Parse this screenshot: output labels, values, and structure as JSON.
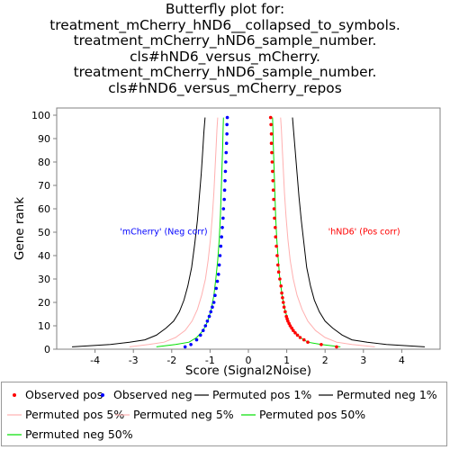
{
  "title_lines": [
    "Butterfly plot for:",
    "treatment_mCherry_hND6__collapsed_to_symbols.",
    "treatment_mCherry_hND6_sample_number.",
    "cls#hND6_versus_mCherry.",
    "treatment_mCherry_hND6_sample_number.",
    "cls#hND6_versus_mCherry_repos"
  ],
  "chart_data": {
    "type": "line",
    "xlabel": "Score (Signal2Noise)",
    "ylabel": "Gene rank",
    "xlim": [
      -5,
      5
    ],
    "ylim": [
      0,
      100
    ],
    "xticks": [
      -4,
      -3,
      -2,
      -1,
      0,
      1,
      2,
      3,
      4
    ],
    "yticks": [
      0,
      10,
      20,
      30,
      40,
      50,
      60,
      70,
      80,
      90,
      100
    ],
    "grid": false,
    "annotations": [
      {
        "text": "'mCherry' (Neg corr)",
        "color": "#0000ff",
        "x": -3.35,
        "y": 49
      },
      {
        "text": "'hND6' (Pos corr)",
        "color": "#ff0000",
        "x": 3.3,
        "y": 49
      }
    ],
    "series": [
      {
        "name": "Observed pos",
        "kind": "points",
        "color": "#ff0000",
        "points": [
          [
            2.3,
            1
          ],
          [
            1.9,
            2
          ],
          [
            1.55,
            3
          ],
          [
            1.45,
            4
          ],
          [
            1.35,
            5
          ],
          [
            1.28,
            6
          ],
          [
            1.22,
            7
          ],
          [
            1.17,
            8
          ],
          [
            1.13,
            9
          ],
          [
            1.09,
            10
          ],
          [
            1.06,
            11
          ],
          [
            1.03,
            12
          ],
          [
            1.01,
            13
          ],
          [
            0.99,
            14
          ],
          [
            0.96,
            16
          ],
          [
            0.93,
            18
          ],
          [
            0.91,
            20
          ],
          [
            0.89,
            22
          ],
          [
            0.87,
            24
          ],
          [
            0.85,
            27
          ],
          [
            0.82,
            30
          ],
          [
            0.79,
            33
          ],
          [
            0.77,
            36
          ],
          [
            0.75,
            40
          ],
          [
            0.73,
            44
          ],
          [
            0.71,
            48
          ],
          [
            0.7,
            52
          ],
          [
            0.68,
            56
          ],
          [
            0.67,
            60
          ],
          [
            0.66,
            64
          ],
          [
            0.65,
            68
          ],
          [
            0.64,
            72
          ],
          [
            0.63,
            76
          ],
          [
            0.62,
            80
          ],
          [
            0.61,
            84
          ],
          [
            0.6,
            88
          ],
          [
            0.6,
            92
          ],
          [
            0.59,
            96
          ],
          [
            0.58,
            99
          ]
        ]
      },
      {
        "name": "Observed neg",
        "kind": "points",
        "color": "#0000ff",
        "points": [
          [
            -1.65,
            1
          ],
          [
            -1.5,
            2
          ],
          [
            -1.35,
            4
          ],
          [
            -1.25,
            6
          ],
          [
            -1.18,
            8
          ],
          [
            -1.12,
            10
          ],
          [
            -1.07,
            12
          ],
          [
            -1.02,
            14
          ],
          [
            -0.98,
            16
          ],
          [
            -0.94,
            18
          ],
          [
            -0.9,
            20
          ],
          [
            -0.87,
            23
          ],
          [
            -0.84,
            26
          ],
          [
            -0.81,
            29
          ],
          [
            -0.78,
            32
          ],
          [
            -0.76,
            36
          ],
          [
            -0.74,
            40
          ],
          [
            -0.72,
            44
          ],
          [
            -0.7,
            48
          ],
          [
            -0.68,
            52
          ],
          [
            -0.66,
            56
          ],
          [
            -0.65,
            60
          ],
          [
            -0.63,
            64
          ],
          [
            -0.62,
            68
          ],
          [
            -0.61,
            72
          ],
          [
            -0.6,
            76
          ],
          [
            -0.59,
            80
          ],
          [
            -0.58,
            84
          ],
          [
            -0.57,
            88
          ],
          [
            -0.56,
            92
          ],
          [
            -0.56,
            96
          ],
          [
            -0.55,
            99
          ]
        ]
      },
      {
        "name": "Permuted pos 1%",
        "kind": "line",
        "color": "#000000",
        "points": [
          [
            4.6,
            1
          ],
          [
            3.6,
            2
          ],
          [
            3.1,
            3
          ],
          [
            2.7,
            4
          ],
          [
            2.45,
            6
          ],
          [
            2.2,
            9
          ],
          [
            2.0,
            12
          ],
          [
            1.85,
            16
          ],
          [
            1.72,
            21
          ],
          [
            1.62,
            27
          ],
          [
            1.52,
            35
          ],
          [
            1.45,
            45
          ],
          [
            1.38,
            55
          ],
          [
            1.32,
            65
          ],
          [
            1.27,
            75
          ],
          [
            1.22,
            85
          ],
          [
            1.18,
            93
          ],
          [
            1.15,
            99
          ]
        ]
      },
      {
        "name": "Permuted neg 1%",
        "kind": "line",
        "color": "#000000",
        "points": [
          [
            -4.6,
            1
          ],
          [
            -3.6,
            2
          ],
          [
            -3.1,
            3
          ],
          [
            -2.7,
            4
          ],
          [
            -2.4,
            6
          ],
          [
            -2.15,
            9
          ],
          [
            -1.95,
            12
          ],
          [
            -1.8,
            16
          ],
          [
            -1.68,
            21
          ],
          [
            -1.58,
            27
          ],
          [
            -1.48,
            35
          ],
          [
            -1.4,
            45
          ],
          [
            -1.33,
            55
          ],
          [
            -1.28,
            65
          ],
          [
            -1.23,
            75
          ],
          [
            -1.19,
            85
          ],
          [
            -1.16,
            93
          ],
          [
            -1.13,
            99
          ]
        ]
      },
      {
        "name": "Permuted pos 5%",
        "kind": "line",
        "color": "#ffb0b0",
        "points": [
          [
            3.3,
            1
          ],
          [
            2.7,
            2
          ],
          [
            2.3,
            3
          ],
          [
            2.0,
            5
          ],
          [
            1.75,
            8
          ],
          [
            1.55,
            12
          ],
          [
            1.4,
            17
          ],
          [
            1.27,
            23
          ],
          [
            1.17,
            30
          ],
          [
            1.09,
            38
          ],
          [
            1.03,
            47
          ],
          [
            0.98,
            57
          ],
          [
            0.94,
            67
          ],
          [
            0.91,
            77
          ],
          [
            0.88,
            87
          ],
          [
            0.86,
            94
          ],
          [
            0.84,
            99
          ]
        ]
      },
      {
        "name": "Permuted neg 5%",
        "kind": "line",
        "color": "#ffb0b0",
        "points": [
          [
            -3.1,
            1
          ],
          [
            -2.6,
            2
          ],
          [
            -2.2,
            3
          ],
          [
            -1.9,
            5
          ],
          [
            -1.65,
            8
          ],
          [
            -1.47,
            12
          ],
          [
            -1.33,
            17
          ],
          [
            -1.22,
            23
          ],
          [
            -1.12,
            30
          ],
          [
            -1.05,
            38
          ],
          [
            -0.99,
            47
          ],
          [
            -0.94,
            57
          ],
          [
            -0.9,
            67
          ],
          [
            -0.87,
            77
          ],
          [
            -0.84,
            87
          ],
          [
            -0.82,
            94
          ],
          [
            -0.8,
            99
          ]
        ]
      },
      {
        "name": "Permuted pos 50%",
        "kind": "line",
        "color": "#00e000",
        "points": [
          [
            2.4,
            1
          ],
          [
            1.9,
            2
          ],
          [
            1.55,
            3
          ],
          [
            1.35,
            5
          ],
          [
            1.17,
            8
          ],
          [
            1.04,
            12
          ],
          [
            0.95,
            17
          ],
          [
            0.88,
            23
          ],
          [
            0.82,
            30
          ],
          [
            0.78,
            38
          ],
          [
            0.74,
            47
          ],
          [
            0.71,
            57
          ],
          [
            0.69,
            67
          ],
          [
            0.67,
            77
          ],
          [
            0.65,
            87
          ],
          [
            0.64,
            94
          ],
          [
            0.63,
            99
          ]
        ]
      },
      {
        "name": "Permuted neg 50%",
        "kind": "line",
        "color": "#00e000",
        "points": [
          [
            -2.4,
            1
          ],
          [
            -1.9,
            2
          ],
          [
            -1.55,
            3
          ],
          [
            -1.35,
            5
          ],
          [
            -1.18,
            8
          ],
          [
            -1.06,
            12
          ],
          [
            -0.97,
            17
          ],
          [
            -0.9,
            23
          ],
          [
            -0.85,
            30
          ],
          [
            -0.8,
            38
          ],
          [
            -0.76,
            47
          ],
          [
            -0.73,
            57
          ],
          [
            -0.71,
            67
          ],
          [
            -0.69,
            77
          ],
          [
            -0.67,
            87
          ],
          [
            -0.66,
            94
          ],
          [
            -0.65,
            99
          ]
        ]
      }
    ]
  }
}
